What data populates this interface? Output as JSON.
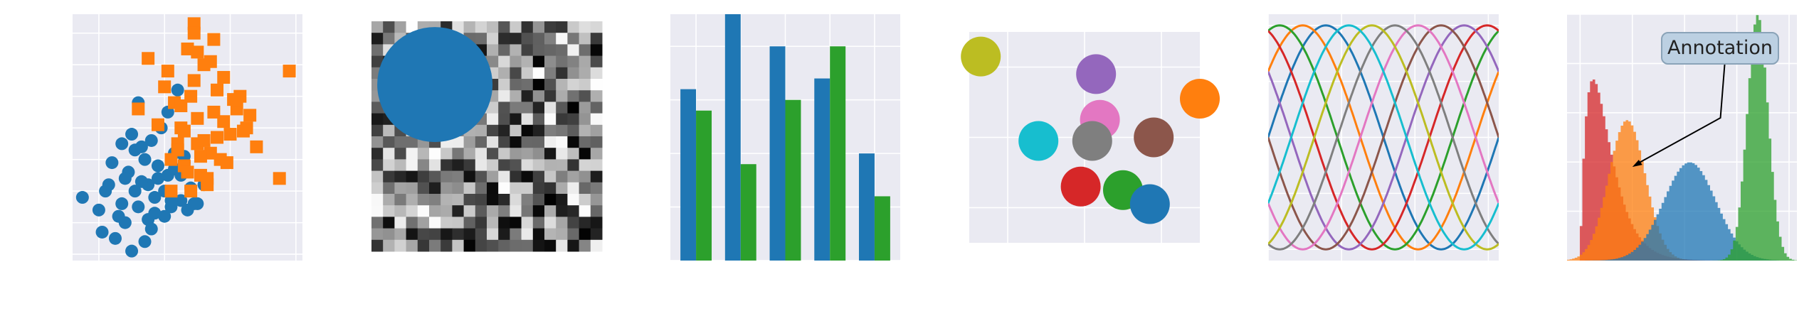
{
  "colors": {
    "axes_bg": "#eaeaf2",
    "grid": "#ffffff",
    "blue": "#1f77b4",
    "orange": "#ff7f0e",
    "green": "#2ca02c",
    "red": "#d62728",
    "purple": "#9467bd",
    "brown": "#8c564b",
    "pink": "#e377c2",
    "gray": "#7f7f7f",
    "olive": "#bcbd22",
    "cyan": "#17becf"
  },
  "chart_data": [
    {
      "type": "scatter",
      "xlim": [
        -2.8,
        4.2
      ],
      "ylim": [
        -2.2,
        5.6
      ],
      "grid": true,
      "series": [
        {
          "marker": "circle",
          "color": "#1f77b4",
          "x": [
            -0.8,
            -0.5,
            -0.2,
            -1.2,
            -0.6,
            0.1,
            0.5,
            -0.9,
            -1.5,
            0.3,
            0.8,
            -0.3,
            -1.1,
            0.0,
            0.6,
            -0.7,
            -1.8,
            -1.3,
            0.2,
            -0.4,
            0.9,
            1.2,
            -1.0,
            -0.1,
            0.4,
            -0.6,
            -1.4,
            0.7,
            -2.0,
            -2.5,
            1.0,
            -0.2,
            -1.6,
            0.2,
            -0.9,
            -0.5,
            0.1,
            -1.2,
            -0.8,
            0.3,
            -1.7,
            -0.3,
            0.5,
            -1.9,
            -1.0,
            -0.4,
            0.0,
            -1.3,
            0.6,
            -0.7
          ],
          "y": [
            -0.5,
            0.2,
            0.8,
            -1.0,
            1.0,
            0.5,
            -0.3,
            0.0,
            -1.5,
            1.2,
            0.1,
            -0.2,
            0.6,
            -0.8,
            0.9,
            0.3,
            0.0,
            1.5,
            -0.5,
            -1.2,
            -0.4,
            0.2,
            1.8,
            2.0,
            3.2,
            -1.6,
            -0.8,
            -0.6,
            -0.6,
            -0.2,
            -0.4,
            0.4,
            0.9,
            -0.3,
            1.3,
            -0.9,
            2.5,
            0.4,
            2.8,
            0.7,
            0.2,
            -0.7,
            0.5,
            -1.3,
            -1.9,
            1.6,
            0.0,
            -0.4,
            1.1,
            1.4
          ]
        },
        {
          "marker": "square",
          "color": "#ff7f0e",
          "x": [
            0.5,
            1.0,
            0.8,
            1.5,
            0.2,
            1.2,
            1.8,
            0.6,
            2.0,
            0.9,
            1.4,
            0.3,
            1.1,
            2.5,
            0.7,
            1.6,
            0.4,
            1.3,
            2.2,
            0.1,
            1.7,
            0.9,
            1.5,
            2.8,
            3.5,
            1.0,
            0.6,
            2.3,
            -0.5,
            1.9,
            0.8,
            1.2,
            0.0,
            2.6,
            1.4,
            0.5,
            1.8,
            3.8,
            -0.2,
            1.1,
            0.7,
            1.6,
            2.1,
            0.9,
            1.3,
            0.4,
            2.4,
            1.0,
            -0.8,
            0.2
          ],
          "y": [
            2.0,
            1.5,
            3.0,
            2.5,
            1.0,
            4.0,
            2.2,
            0.8,
            1.8,
            3.5,
            1.2,
            2.8,
            0.5,
            2.0,
            4.5,
            3.2,
            1.5,
            0.2,
            2.6,
            3.8,
            1.0,
            5.3,
            4.8,
            1.4,
            0.4,
            2.3,
            1.9,
            3.0,
            4.2,
            0.9,
            0.0,
            1.6,
            3.3,
            2.4,
            4.1,
            2.7,
            3.6,
            3.8,
            2.1,
            1.1,
            0.6,
            1.7,
            2.9,
            5.0,
            0.4,
            1.3,
            1.9,
            4.4,
            2.6,
            0.0
          ]
        }
      ]
    },
    {
      "type": "heatmap",
      "rows": 20,
      "cols": 20,
      "colormap": "gray",
      "overlay": {
        "shape": "circle",
        "color": "#1f77b4",
        "center": [
          5.5,
          5.5
        ],
        "radius": 5
      }
    },
    {
      "type": "bar",
      "ylim": [
        0,
        9.2
      ],
      "grid": true,
      "series": [
        {
          "color": "#1f77b4",
          "values": [
            6.4,
            9.2,
            8.0,
            6.8,
            4.0
          ]
        },
        {
          "color": "#2ca02c",
          "values": [
            5.6,
            3.6,
            6.0,
            8.0,
            2.4
          ]
        }
      ]
    },
    {
      "type": "scatter",
      "xlim": [
        -3,
        3
      ],
      "ylim": [
        -3,
        3
      ],
      "grid": true,
      "points": [
        {
          "x": -2.7,
          "y": 2.3,
          "color": "#bcbd22"
        },
        {
          "x": 0.3,
          "y": 1.8,
          "color": "#9467bd"
        },
        {
          "x": 3.0,
          "y": 1.1,
          "color": "#ff7f0e"
        },
        {
          "x": 0.4,
          "y": 0.5,
          "color": "#e377c2"
        },
        {
          "x": -1.2,
          "y": -0.1,
          "color": "#17becf"
        },
        {
          "x": 0.2,
          "y": -0.1,
          "color": "#7f7f7f"
        },
        {
          "x": 1.8,
          "y": 0.0,
          "color": "#8c564b"
        },
        {
          "x": -0.1,
          "y": -1.4,
          "color": "#d62728"
        },
        {
          "x": 1.0,
          "y": -1.5,
          "color": "#2ca02c"
        },
        {
          "x": 1.7,
          "y": -1.9,
          "color": "#1f77b4"
        }
      ]
    },
    {
      "type": "line",
      "function": "sin",
      "xlim": [
        0,
        6.2832
      ],
      "ylim": [
        -1.1,
        1.1
      ],
      "grid": true,
      "phases": [
        0,
        0.6283,
        1.2566,
        1.885,
        2.5133,
        3.1416,
        3.7699,
        4.3982,
        5.0265,
        5.6549
      ],
      "colors": [
        "#1f77b4",
        "#ff7f0e",
        "#2ca02c",
        "#d62728",
        "#9467bd",
        "#8c564b",
        "#e377c2",
        "#7f7f7f",
        "#bcbd22",
        "#17becf"
      ]
    },
    {
      "type": "histogram",
      "xlim": [
        -4.5,
        4.3
      ],
      "ylim": [
        0,
        1.0
      ],
      "grid": true,
      "series": [
        {
          "color": "#d62728",
          "distribution": "gamma",
          "shape": 2,
          "scale": 0.5,
          "shift": -4.0
        },
        {
          "color": "#ff7f0e",
          "distribution": "normal",
          "mean": -2.2,
          "sd": 0.7
        },
        {
          "color": "#1f77b4",
          "distribution": "normal",
          "mean": 0.2,
          "sd": 1.0
        },
        {
          "color": "#2ca02c",
          "distribution": "normal",
          "mean": 2.8,
          "sd": 0.4
        }
      ],
      "annotation": {
        "text": "Annotation",
        "point": [
          -2.0,
          0.38
        ]
      }
    }
  ]
}
